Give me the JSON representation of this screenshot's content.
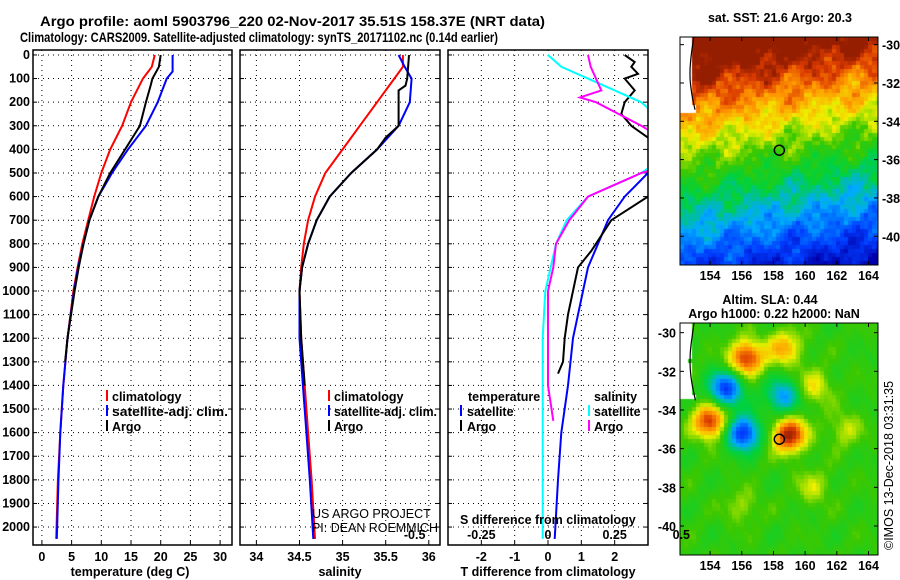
{
  "header": {
    "title_line1": "Argo profile: aoml 5903796_220 02-Nov-2017 35.51S 158.37E (NRT data)",
    "title_line2": "Climatology: CARS2009. Satellite-adjusted climatology: synTS_20171102.nc (0.14d earlier)"
  },
  "colors": {
    "climatology": "#ff0000",
    "satellite": "#0000ff",
    "argo": "#000000",
    "sal_satellite": "#00ffff",
    "sal_argo": "#ff00ff"
  },
  "credits": {
    "project": "US ARGO PROJECT",
    "pi": "PI: DEAN ROEMMICH",
    "watermark": "©IMOS 13-Dec-2018 03:31:35"
  },
  "depth_ticks": [
    "0",
    "100",
    "200",
    "300",
    "400",
    "500",
    "600",
    "700",
    "800",
    "900",
    "1000",
    "1100",
    "1200",
    "1300",
    "1400",
    "1500",
    "1600",
    "1700",
    "1800",
    "1900",
    "2000"
  ],
  "chart_data": [
    {
      "type": "line",
      "id": "temperature",
      "xlabel": "temperature (deg C)",
      "ylabel": "depth",
      "xlim": [
        -1.5,
        32
      ],
      "ylim": [
        2076,
        -21
      ],
      "xticks": [
        "0",
        "5",
        "10",
        "15",
        "20",
        "25",
        "30"
      ],
      "legend": [
        "climatology",
        "satellite-adj. clim.",
        "Argo"
      ],
      "series": [
        {
          "name": "climatology",
          "color": "#ff0000",
          "depth": [
            0,
            50,
            100,
            200,
            300,
            400,
            500,
            600,
            700,
            800,
            900,
            1000,
            1200,
            1400,
            1600,
            1800,
            2050
          ],
          "values": [
            19,
            18.5,
            17,
            15,
            13.5,
            11.5,
            10,
            8.8,
            7.8,
            6.8,
            6,
            5.3,
            4.3,
            3.6,
            3.1,
            2.7,
            2.4
          ]
        },
        {
          "name": "satellite-adj. clim.",
          "color": "#0000ff",
          "depth": [
            0,
            70,
            100,
            200,
            300,
            400,
            500,
            600,
            700,
            800,
            900,
            1000,
            1200,
            1400,
            1600,
            1800,
            2050
          ],
          "values": [
            22,
            22,
            21,
            19.5,
            17.5,
            14.5,
            11.8,
            9.5,
            8,
            7,
            6.1,
            5.4,
            4.3,
            3.6,
            3.1,
            2.8,
            2.5
          ]
        },
        {
          "name": "Argo",
          "color": "#000000",
          "depth": [
            0,
            50,
            100,
            130,
            200,
            300,
            400,
            500,
            600,
            700,
            800,
            900,
            1000,
            1200,
            1300
          ],
          "values": [
            20,
            19.7,
            18.6,
            18.3,
            17.5,
            16.5,
            14,
            11.5,
            9.5,
            8,
            7,
            6.2,
            5.5,
            4.3,
            3.9
          ]
        }
      ]
    },
    {
      "type": "line",
      "id": "salinity",
      "xlabel": "salinity",
      "ylabel": "depth",
      "xlim": [
        33.81,
        36.13
      ],
      "ylim": [
        2076,
        -21
      ],
      "xticks": [
        "34",
        "34.5",
        "35",
        "35.5",
        "36"
      ],
      "legend": [
        "climatology",
        "satellite-adj. clim.",
        "Argo"
      ],
      "series": [
        {
          "name": "climatology",
          "color": "#ff0000",
          "depth": [
            0,
            50,
            100,
            200,
            300,
            400,
            500,
            600,
            700,
            800,
            900,
            1000,
            1200,
            1400,
            1600,
            1800,
            2050
          ],
          "values": [
            35.7,
            35.7,
            35.6,
            35.4,
            35.2,
            35.0,
            34.8,
            34.68,
            34.6,
            34.55,
            34.52,
            34.5,
            34.52,
            34.56,
            34.6,
            34.64,
            34.68
          ]
        },
        {
          "name": "satellite-adj. clim.",
          "color": "#0000ff",
          "depth": [
            0,
            50,
            100,
            200,
            300,
            400,
            500,
            600,
            700,
            800,
            900,
            1000,
            1200,
            1400,
            1600,
            1800,
            2050
          ],
          "values": [
            35.65,
            35.72,
            35.8,
            35.78,
            35.65,
            35.4,
            35.1,
            34.85,
            34.7,
            34.6,
            34.53,
            34.5,
            34.5,
            34.54,
            34.58,
            34.62,
            34.66
          ]
        },
        {
          "name": "Argo",
          "color": "#000000",
          "depth": [
            0,
            100,
            130,
            150,
            300,
            350,
            400,
            500,
            600,
            700,
            800,
            900,
            1000,
            1200,
            1400
          ],
          "values": [
            35.77,
            35.75,
            35.73,
            35.65,
            35.65,
            35.5,
            35.4,
            35.1,
            34.85,
            34.7,
            34.6,
            34.53,
            34.5,
            34.52,
            34.56
          ]
        }
      ]
    },
    {
      "type": "line",
      "id": "differences",
      "xlabel": "T difference from climatology",
      "x2label": "S difference from climatology",
      "ylabel": "depth",
      "xlim": [
        -3,
        3
      ],
      "x2lim": [
        -0.375,
        0.375
      ],
      "ylim": [
        2076,
        -21
      ],
      "xticks": [
        "-2",
        "-1",
        "0",
        "1",
        "2"
      ],
      "x2ticks": [
        "-0.5",
        "-0.25",
        "0",
        "0.25",
        "0.5"
      ],
      "legend_temperature": {
        "title": "temperature",
        "items": [
          "satellite",
          "Argo"
        ]
      },
      "legend_salinity": {
        "title": "salinity",
        "items": [
          "satellite",
          "Argo"
        ]
      },
      "series": [
        {
          "name": "temperature satellite",
          "axis": "T",
          "color": "#0000ff",
          "depth": [
            0,
            400,
            500,
            600,
            700,
            800,
            900,
            1000,
            1100,
            1200,
            1400,
            1600,
            1800,
            2050
          ],
          "values": [
            3.5,
            3.5,
            3.0,
            2.3,
            1.8,
            1.5,
            1.2,
            1.05,
            0.9,
            0.75,
            0.6,
            0.4,
            0.3,
            0.2
          ]
        },
        {
          "name": "temperature Argo",
          "axis": "T",
          "color": "#000000",
          "depth": [
            0,
            30,
            50,
            80,
            100,
            150,
            200,
            250,
            300,
            400,
            600,
            700,
            830,
            900,
            1000,
            1100,
            1200,
            1300,
            1350
          ],
          "values": [
            2.3,
            2.6,
            2.5,
            2.7,
            2.3,
            2.6,
            2.3,
            2.2,
            2.5,
            3.5,
            3.0,
            1.9,
            1.3,
            0.9,
            0.75,
            0.6,
            0.5,
            0.45,
            0.3
          ]
        },
        {
          "name": "salinity satellite",
          "axis": "S",
          "color": "#00ffff",
          "depth": [
            0,
            50,
            100,
            200,
            300,
            400,
            500,
            600,
            700,
            800,
            900,
            1000,
            1200,
            1400,
            1600,
            2050
          ],
          "values": [
            0,
            0.05,
            0.15,
            0.35,
            0.45,
            0.48,
            0.35,
            0.15,
            0.07,
            0.03,
            0.01,
            -0.01,
            -0.02,
            -0.02,
            -0.02,
            -0.02
          ]
        },
        {
          "name": "salinity Argo",
          "axis": "S",
          "color": "#ff00ff",
          "depth": [
            0,
            50,
            100,
            150,
            180,
            200,
            300,
            400,
            450,
            500,
            600,
            700,
            800,
            900,
            1000,
            1200,
            1400,
            1550
          ],
          "values": [
            0.15,
            0.16,
            0.18,
            0.2,
            0.12,
            0.18,
            0.35,
            0.5,
            0.5,
            0.35,
            0.15,
            0.08,
            0.03,
            0.02,
            0,
            0,
            0,
            0.02
          ]
        }
      ]
    },
    {
      "type": "heatmap",
      "id": "sst-map",
      "title": "sat. SST: 21.6  Argo: 20.3",
      "lon_range": [
        152.1,
        164.6
      ],
      "lat_range": [
        -41.5,
        -29.6
      ],
      "xticks": [
        "154",
        "156",
        "158",
        "160",
        "162",
        "164"
      ],
      "yticks": [
        "-30",
        "-32",
        "-34",
        "-36",
        "-38",
        "-40"
      ],
      "profile_position": {
        "lon": 158.37,
        "lat": -35.51
      }
    },
    {
      "type": "heatmap",
      "id": "sla-map",
      "title": "Altim. SLA: 0.44",
      "subtitle": "Argo h1000: 0.22 h2000: NaN",
      "lon_range": [
        152.1,
        164.6
      ],
      "lat_range": [
        -41.5,
        -29.5
      ],
      "xticks": [
        "154",
        "156",
        "158",
        "160",
        "162",
        "164"
      ],
      "yticks": [
        "-30",
        "-32",
        "-34",
        "-36",
        "-38",
        "-40"
      ],
      "profile_position": {
        "lon": 158.37,
        "lat": -35.51
      }
    }
  ]
}
